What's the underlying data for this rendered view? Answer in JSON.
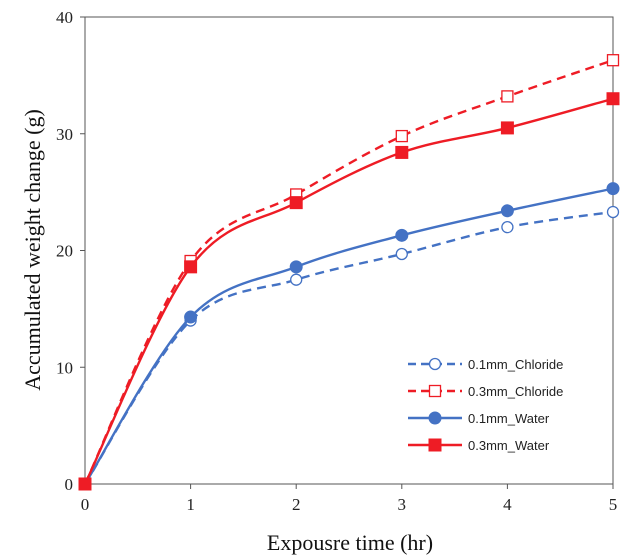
{
  "chart_data": {
    "type": "line",
    "title": "",
    "xlabel": "Expousre time (hr)",
    "ylabel": "Accumulated weight change (g)",
    "x": [
      0,
      1,
      2,
      3,
      4,
      5
    ],
    "x_ticks": [
      "0",
      "1",
      "2",
      "3",
      "4",
      "5"
    ],
    "y_ticks": [
      "0",
      "10",
      "20",
      "30",
      "40"
    ],
    "xlim": [
      0,
      5
    ],
    "ylim": [
      0,
      40
    ],
    "grid": false,
    "legend_position": "bottom-right",
    "series": [
      {
        "name": "0.1mm_Chloride",
        "values": [
          0,
          14.0,
          17.5,
          19.7,
          22.0,
          23.3
        ],
        "color": "#4472c4",
        "dash": true,
        "marker": "open-circle"
      },
      {
        "name": "0.3mm_Chloride",
        "values": [
          0,
          19.1,
          24.8,
          29.8,
          33.2,
          36.3
        ],
        "color": "#ee1c25",
        "dash": true,
        "marker": "open-square"
      },
      {
        "name": "0.1mm_Water",
        "values": [
          0,
          14.3,
          18.6,
          21.3,
          23.4,
          25.3
        ],
        "color": "#4472c4",
        "dash": false,
        "marker": "filled-circle"
      },
      {
        "name": "0.3mm_Water",
        "values": [
          0,
          18.6,
          24.1,
          28.4,
          30.5,
          33.0
        ],
        "color": "#ee1c25",
        "dash": false,
        "marker": "filled-square"
      }
    ]
  }
}
